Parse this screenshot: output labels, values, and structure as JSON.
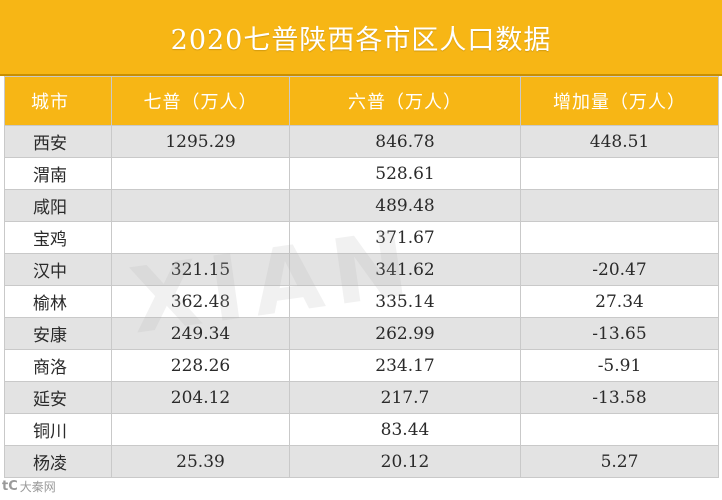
{
  "title": "2020七普陕西各市区人口数据",
  "headers": {
    "city": "城市",
    "census7": "七普（万人）",
    "census6": "六普（万人）",
    "increase": "增加量（万人）"
  },
  "rows": [
    {
      "city": "西安",
      "census7": "1295.29",
      "census6": "846.78",
      "increase": "448.51"
    },
    {
      "city": "渭南",
      "census7": "",
      "census6": "528.61",
      "increase": ""
    },
    {
      "city": "咸阳",
      "census7": "",
      "census6": "489.48",
      "increase": ""
    },
    {
      "city": "宝鸡",
      "census7": "",
      "census6": "371.67",
      "increase": ""
    },
    {
      "city": "汉中",
      "census7": "321.15",
      "census6": "341.62",
      "increase": "-20.47"
    },
    {
      "city": "榆林",
      "census7": "362.48",
      "census6": "335.14",
      "increase": "27.34"
    },
    {
      "city": "安康",
      "census7": "249.34",
      "census6": "262.99",
      "increase": "-13.65"
    },
    {
      "city": "商洛",
      "census7": "228.26",
      "census6": "234.17",
      "increase": "-5.91"
    },
    {
      "city": "延安",
      "census7": "204.12",
      "census6": "217.7",
      "increase": "-13.58"
    },
    {
      "city": "铜川",
      "census7": "",
      "census6": "83.44",
      "increase": ""
    },
    {
      "city": "杨凌",
      "census7": "25.39",
      "census6": "20.12",
      "increase": "5.27"
    }
  ],
  "source": {
    "logo": "tC",
    "label": "大秦网"
  },
  "colors": {
    "header": "#f7b615",
    "shade": "#e3e3e3",
    "border": "#c9c9c9"
  }
}
